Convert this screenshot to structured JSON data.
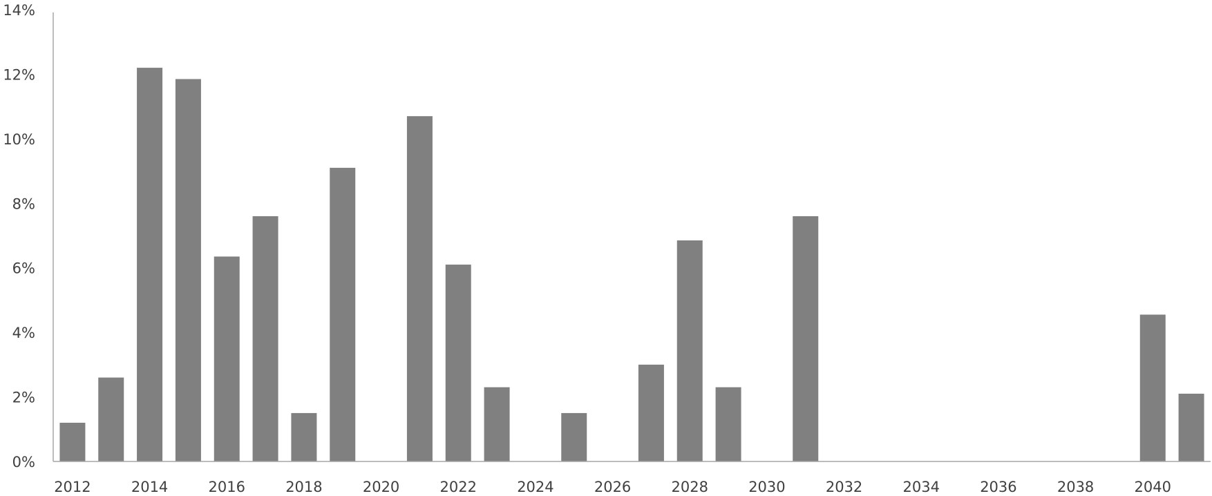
{
  "chart_data": {
    "type": "bar",
    "title": "",
    "xlabel": "",
    "ylabel": "",
    "categories": [
      "2012",
      "2013",
      "2014",
      "2015",
      "2016",
      "2017",
      "2018",
      "2019",
      "2020",
      "2021",
      "2022",
      "2023",
      "2024",
      "2025",
      "2026",
      "2027",
      "2028",
      "2029",
      "2030",
      "2031",
      "2032",
      "2033",
      "2034",
      "2035",
      "2036",
      "2037",
      "2038",
      "2039",
      "2040",
      "2041"
    ],
    "x_tick_labels": [
      "2012",
      "2014",
      "2016",
      "2018",
      "2020",
      "2022",
      "2024",
      "2026",
      "2028",
      "2030",
      "2032",
      "2034",
      "2036",
      "2038",
      "2040"
    ],
    "series": [
      {
        "values": [
          1.2,
          2.6,
          12.2,
          11.85,
          6.35,
          7.6,
          1.5,
          9.1,
          0,
          10.7,
          6.1,
          2.3,
          0,
          1.5,
          0,
          3.0,
          6.85,
          2.3,
          0,
          7.6,
          0,
          0,
          0,
          0,
          0,
          0,
          0,
          0,
          4.55,
          2.1
        ]
      }
    ],
    "y_unit": "%",
    "ylim": [
      0,
      14
    ],
    "y_ticks": [
      0,
      2,
      4,
      6,
      8,
      10,
      12,
      14
    ],
    "y_tick_labels": [
      "0%",
      "2%",
      "4%",
      "6%",
      "8%",
      "10%",
      "12%",
      "14%"
    ],
    "grid": false,
    "legend": "none",
    "bar_color": "#808080",
    "axis_color": "#a6a6a6",
    "label_color": "#404040"
  }
}
